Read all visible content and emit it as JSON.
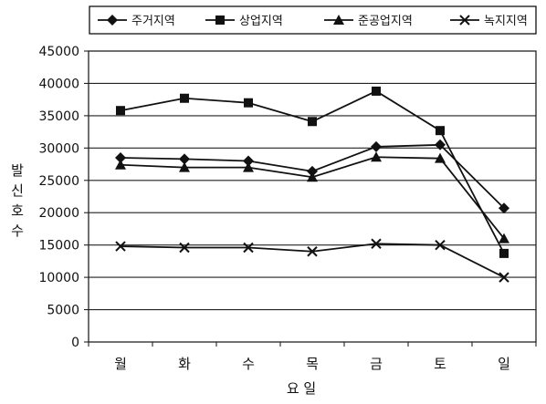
{
  "chart_data": {
    "type": "line",
    "title": "",
    "xlabel": "요 일",
    "ylabel": "발신호수",
    "categories": [
      "월",
      "화",
      "수",
      "목",
      "금",
      "토",
      "일"
    ],
    "ylim": [
      0,
      45000
    ],
    "ytick_step": 5000,
    "yticks": [
      "0",
      "5000",
      "10000",
      "15000",
      "20000",
      "25000",
      "30000",
      "35000",
      "40000",
      "45000"
    ],
    "grid": true,
    "legend_position": "top",
    "series": [
      {
        "name": "주거지역",
        "marker": "diamond",
        "values": [
          28500,
          28300,
          28000,
          26400,
          30200,
          30500,
          20700
        ]
      },
      {
        "name": "상업지역",
        "marker": "square",
        "values": [
          35800,
          37700,
          37000,
          34100,
          38800,
          32700,
          13700
        ]
      },
      {
        "name": "준공업지역",
        "marker": "triangle",
        "values": [
          27400,
          27000,
          27000,
          25500,
          28600,
          28400,
          16000
        ]
      },
      {
        "name": "녹지지역",
        "marker": "x",
        "values": [
          14800,
          14600,
          14600,
          14000,
          15200,
          15000,
          10000
        ]
      }
    ],
    "colors": {
      "line": "#111111",
      "grid": "#222222",
      "background": "#ffffff"
    }
  }
}
